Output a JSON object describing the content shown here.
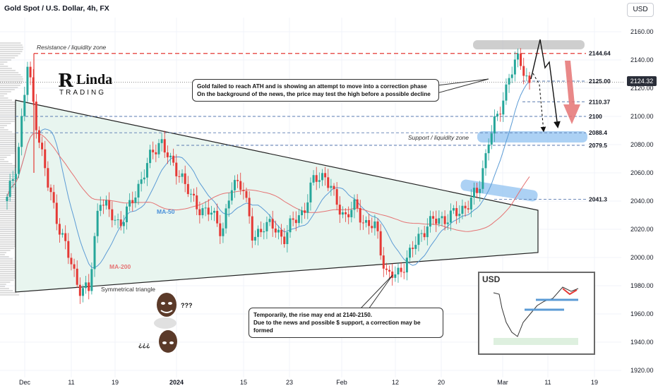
{
  "header": {
    "title": "Gold Spot / U.S. Dollar, 4h, FX",
    "currency_button": "USD",
    "last_price": "2124.32"
  },
  "logo": {
    "part1": "R",
    "part2": "Linda",
    "part3": "TRADING"
  },
  "callouts": {
    "top": {
      "line1": "Gold failed to reach ATH and is showing an attempt to move into a correction phase",
      "line2": "On the background of the news, the price may test the high before a possible decline"
    },
    "bottom": {
      "line1": "Temporarily, the rise may end at 2140-2150.",
      "line2": "Due to the news and possible $ support, a correction may be formed"
    }
  },
  "meme": {
    "q1": "???",
    "q2": "¿¿¿"
  },
  "inset": {
    "label": "USD"
  },
  "colors": {
    "resistance": "#e53935",
    "support": "#1e88e5",
    "up": "#26a69a",
    "down": "#e53935",
    "triangle_fill": "#e6f4ee"
  },
  "chart_data": {
    "type": "candlestick",
    "title": "Gold Spot / U.S. Dollar, 4h, FX",
    "ylim": [
      1915,
      2170
    ],
    "y_ticks": [
      1920,
      1940,
      1960,
      1980,
      2000,
      2020,
      2040,
      2060,
      2080,
      2100,
      2120,
      2140,
      2160
    ],
    "x_tick_labels": [
      "Dec",
      "11",
      "19",
      "2024",
      "15",
      "23",
      "Feb",
      "12",
      "20",
      "Mar",
      "11",
      "19"
    ],
    "levels": [
      {
        "value": 2144.64,
        "label": "2144.64",
        "style": "resistance"
      },
      {
        "value": 2125.0,
        "label": "2125.00",
        "style": "dashed"
      },
      {
        "value": 2110.37,
        "label": "2110.37",
        "style": "dashed"
      },
      {
        "value": 2100,
        "label": "2100",
        "style": "dashed"
      },
      {
        "value": 2088.4,
        "label": "2088.4",
        "style": "dashed"
      },
      {
        "value": 2079.5,
        "label": "2079.5",
        "style": "dashed"
      },
      {
        "value": 2041.3,
        "label": "2041.3",
        "style": "dashed"
      }
    ],
    "annotations": {
      "resistance_zone": "Resistance / liquidity zone",
      "support_zone": "Support / liquidity zone",
      "triangle": "Symmetrical triangle",
      "ma50": "MA-50",
      "ma200": "MA-200"
    },
    "price_path": [
      [
        "Dec 1",
        2040
      ],
      [
        "Dec 2",
        2070
      ],
      [
        "Dec 4",
        2135
      ],
      [
        "Dec 5",
        2090
      ],
      [
        "Dec 6",
        2050
      ],
      [
        "Dec 8",
        2025
      ],
      [
        "Dec 10",
        2000
      ],
      [
        "Dec 12",
        1980
      ],
      [
        "Dec 13",
        1975
      ],
      [
        "Dec 14",
        2045
      ],
      [
        "Dec 15",
        2030
      ],
      [
        "Dec 18",
        2025
      ],
      [
        "Dec 20",
        2035
      ],
      [
        "Dec 22",
        2055
      ],
      [
        "Dec 25",
        2070
      ],
      [
        "Dec 27",
        2085
      ],
      [
        "Dec 29",
        2065
      ],
      [
        "Jan 2",
        2060
      ],
      [
        "Jan 4",
        2040
      ],
      [
        "Jan 6",
        2035
      ],
      [
        "Jan 9",
        2030
      ],
      [
        "Jan 11",
        2020
      ],
      [
        "Jan 13",
        2050
      ],
      [
        "Jan 15",
        2055
      ],
      [
        "Jan 17",
        2010
      ],
      [
        "Jan 19",
        2025
      ],
      [
        "Jan 22",
        2020
      ],
      [
        "Jan 24",
        2015
      ],
      [
        "Jan 26",
        2025
      ],
      [
        "Jan 29",
        2035
      ],
      [
        "Jan 31",
        2055
      ],
      [
        "Feb 1",
        2060
      ],
      [
        "Feb 3",
        2040
      ],
      [
        "Feb 5",
        2030
      ],
      [
        "Feb 8",
        2035
      ],
      [
        "Feb 10",
        2025
      ],
      [
        "Feb 12",
        2020
      ],
      [
        "Feb 14",
        1990
      ],
      [
        "Feb 15",
        1985
      ],
      [
        "Feb 16",
        2000
      ],
      [
        "Feb 18",
        2010
      ],
      [
        "Feb 20",
        2025
      ],
      [
        "Feb 22",
        2025
      ],
      [
        "Feb 24",
        2030
      ],
      [
        "Feb 26",
        2030
      ],
      [
        "Feb 28",
        2040
      ],
      [
        "Feb 29",
        2045
      ],
      [
        "Mar 1",
        2085
      ],
      [
        "Mar 3",
        2100
      ],
      [
        "Mar 4",
        2130
      ],
      [
        "Mar 5",
        2140
      ],
      [
        "Mar 6",
        2124
      ]
    ]
  }
}
